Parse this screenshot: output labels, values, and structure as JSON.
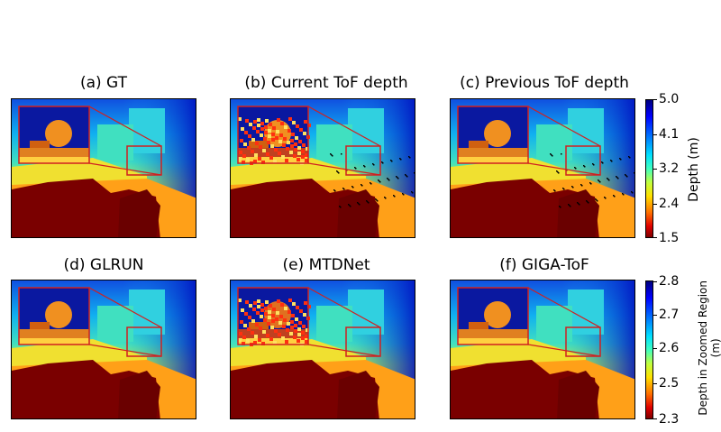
{
  "panels": [
    {
      "title": "(a) GT"
    },
    {
      "title": "(b) Current ToF depth"
    },
    {
      "title": "(c) Previous ToF depth"
    },
    {
      "title": "(d) GLRUN"
    },
    {
      "title": "(e) MTDNet"
    },
    {
      "title": "(f) GIGA-ToF"
    }
  ],
  "colorbar_top": {
    "label": "Depth (m)",
    "ticks": [
      "5.0",
      "4.1",
      "3.2",
      "2.4",
      "1.5"
    ]
  },
  "colorbar_bottom": {
    "label_line1": "Depth in Zoomed Region",
    "label_line2": "(m)",
    "ticks": [
      "2.8",
      "2.7",
      "2.6",
      "2.5",
      "2.3"
    ]
  },
  "colors": {
    "far": "#1010a0",
    "mid": "#20c0e0",
    "near": "#f0d020",
    "floor": "#7a0000",
    "zoom_box": "#d02020"
  }
}
